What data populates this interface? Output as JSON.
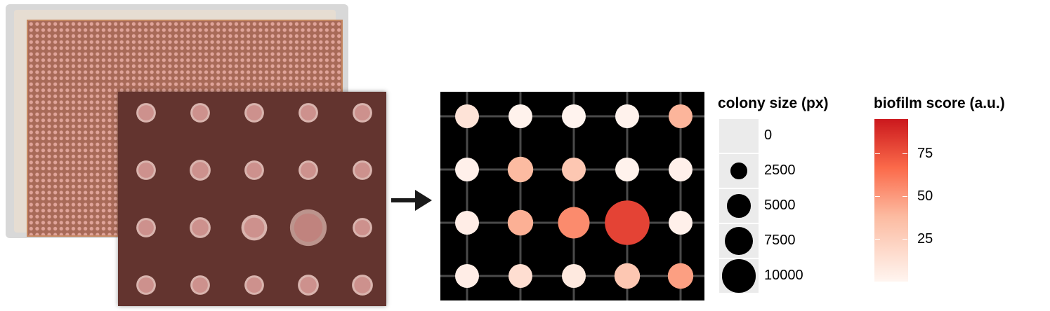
{
  "arrow_icon": "arrow-right-icon",
  "chart_data": {
    "type": "scatter",
    "rows": 4,
    "cols": 5,
    "background": "#000000",
    "grid_color": "#4a4a4a",
    "points": [
      {
        "row": 1,
        "col": 1,
        "size": 2000,
        "score": 12
      },
      {
        "row": 1,
        "col": 2,
        "size": 2000,
        "score": 2
      },
      {
        "row": 1,
        "col": 3,
        "size": 2000,
        "score": 1
      },
      {
        "row": 1,
        "col": 4,
        "size": 2000,
        "score": 2
      },
      {
        "row": 1,
        "col": 5,
        "size": 2000,
        "score": 40
      },
      {
        "row": 2,
        "col": 1,
        "size": 2000,
        "score": 3
      },
      {
        "row": 2,
        "col": 2,
        "size": 2300,
        "score": 38
      },
      {
        "row": 2,
        "col": 3,
        "size": 2000,
        "score": 30
      },
      {
        "row": 2,
        "col": 4,
        "size": 2000,
        "score": 2
      },
      {
        "row": 2,
        "col": 5,
        "size": 2000,
        "score": 3
      },
      {
        "row": 3,
        "col": 1,
        "size": 2000,
        "score": 5
      },
      {
        "row": 3,
        "col": 2,
        "size": 2300,
        "score": 42
      },
      {
        "row": 3,
        "col": 3,
        "size": 3500,
        "score": 55
      },
      {
        "row": 3,
        "col": 4,
        "size": 7000,
        "score": 80
      },
      {
        "row": 3,
        "col": 5,
        "size": 2000,
        "score": 3
      },
      {
        "row": 4,
        "col": 1,
        "size": 2000,
        "score": 5
      },
      {
        "row": 4,
        "col": 2,
        "size": 2000,
        "score": 15
      },
      {
        "row": 4,
        "col": 3,
        "size": 2000,
        "score": 8
      },
      {
        "row": 4,
        "col": 4,
        "size": 2300,
        "score": 30
      },
      {
        "row": 4,
        "col": 5,
        "size": 2300,
        "score": 48
      }
    ],
    "size_legend": {
      "title": "colony size (px)",
      "entries": [
        {
          "value": 0,
          "label": "0"
        },
        {
          "value": 2500,
          "label": "2500"
        },
        {
          "value": 5000,
          "label": "5000"
        },
        {
          "value": 7500,
          "label": "7500"
        },
        {
          "value": 10000,
          "label": "10000"
        }
      ]
    },
    "fill_legend": {
      "title": "biofilm score (a.u.)",
      "range": [
        0,
        95
      ],
      "ticks": [
        {
          "value": 25,
          "label": "25"
        },
        {
          "value": 50,
          "label": "50"
        },
        {
          "value": 75,
          "label": "75"
        }
      ],
      "colors": [
        "#fff5f0",
        "#fcbba1",
        "#fb6a4a",
        "#cb181d"
      ]
    }
  }
}
